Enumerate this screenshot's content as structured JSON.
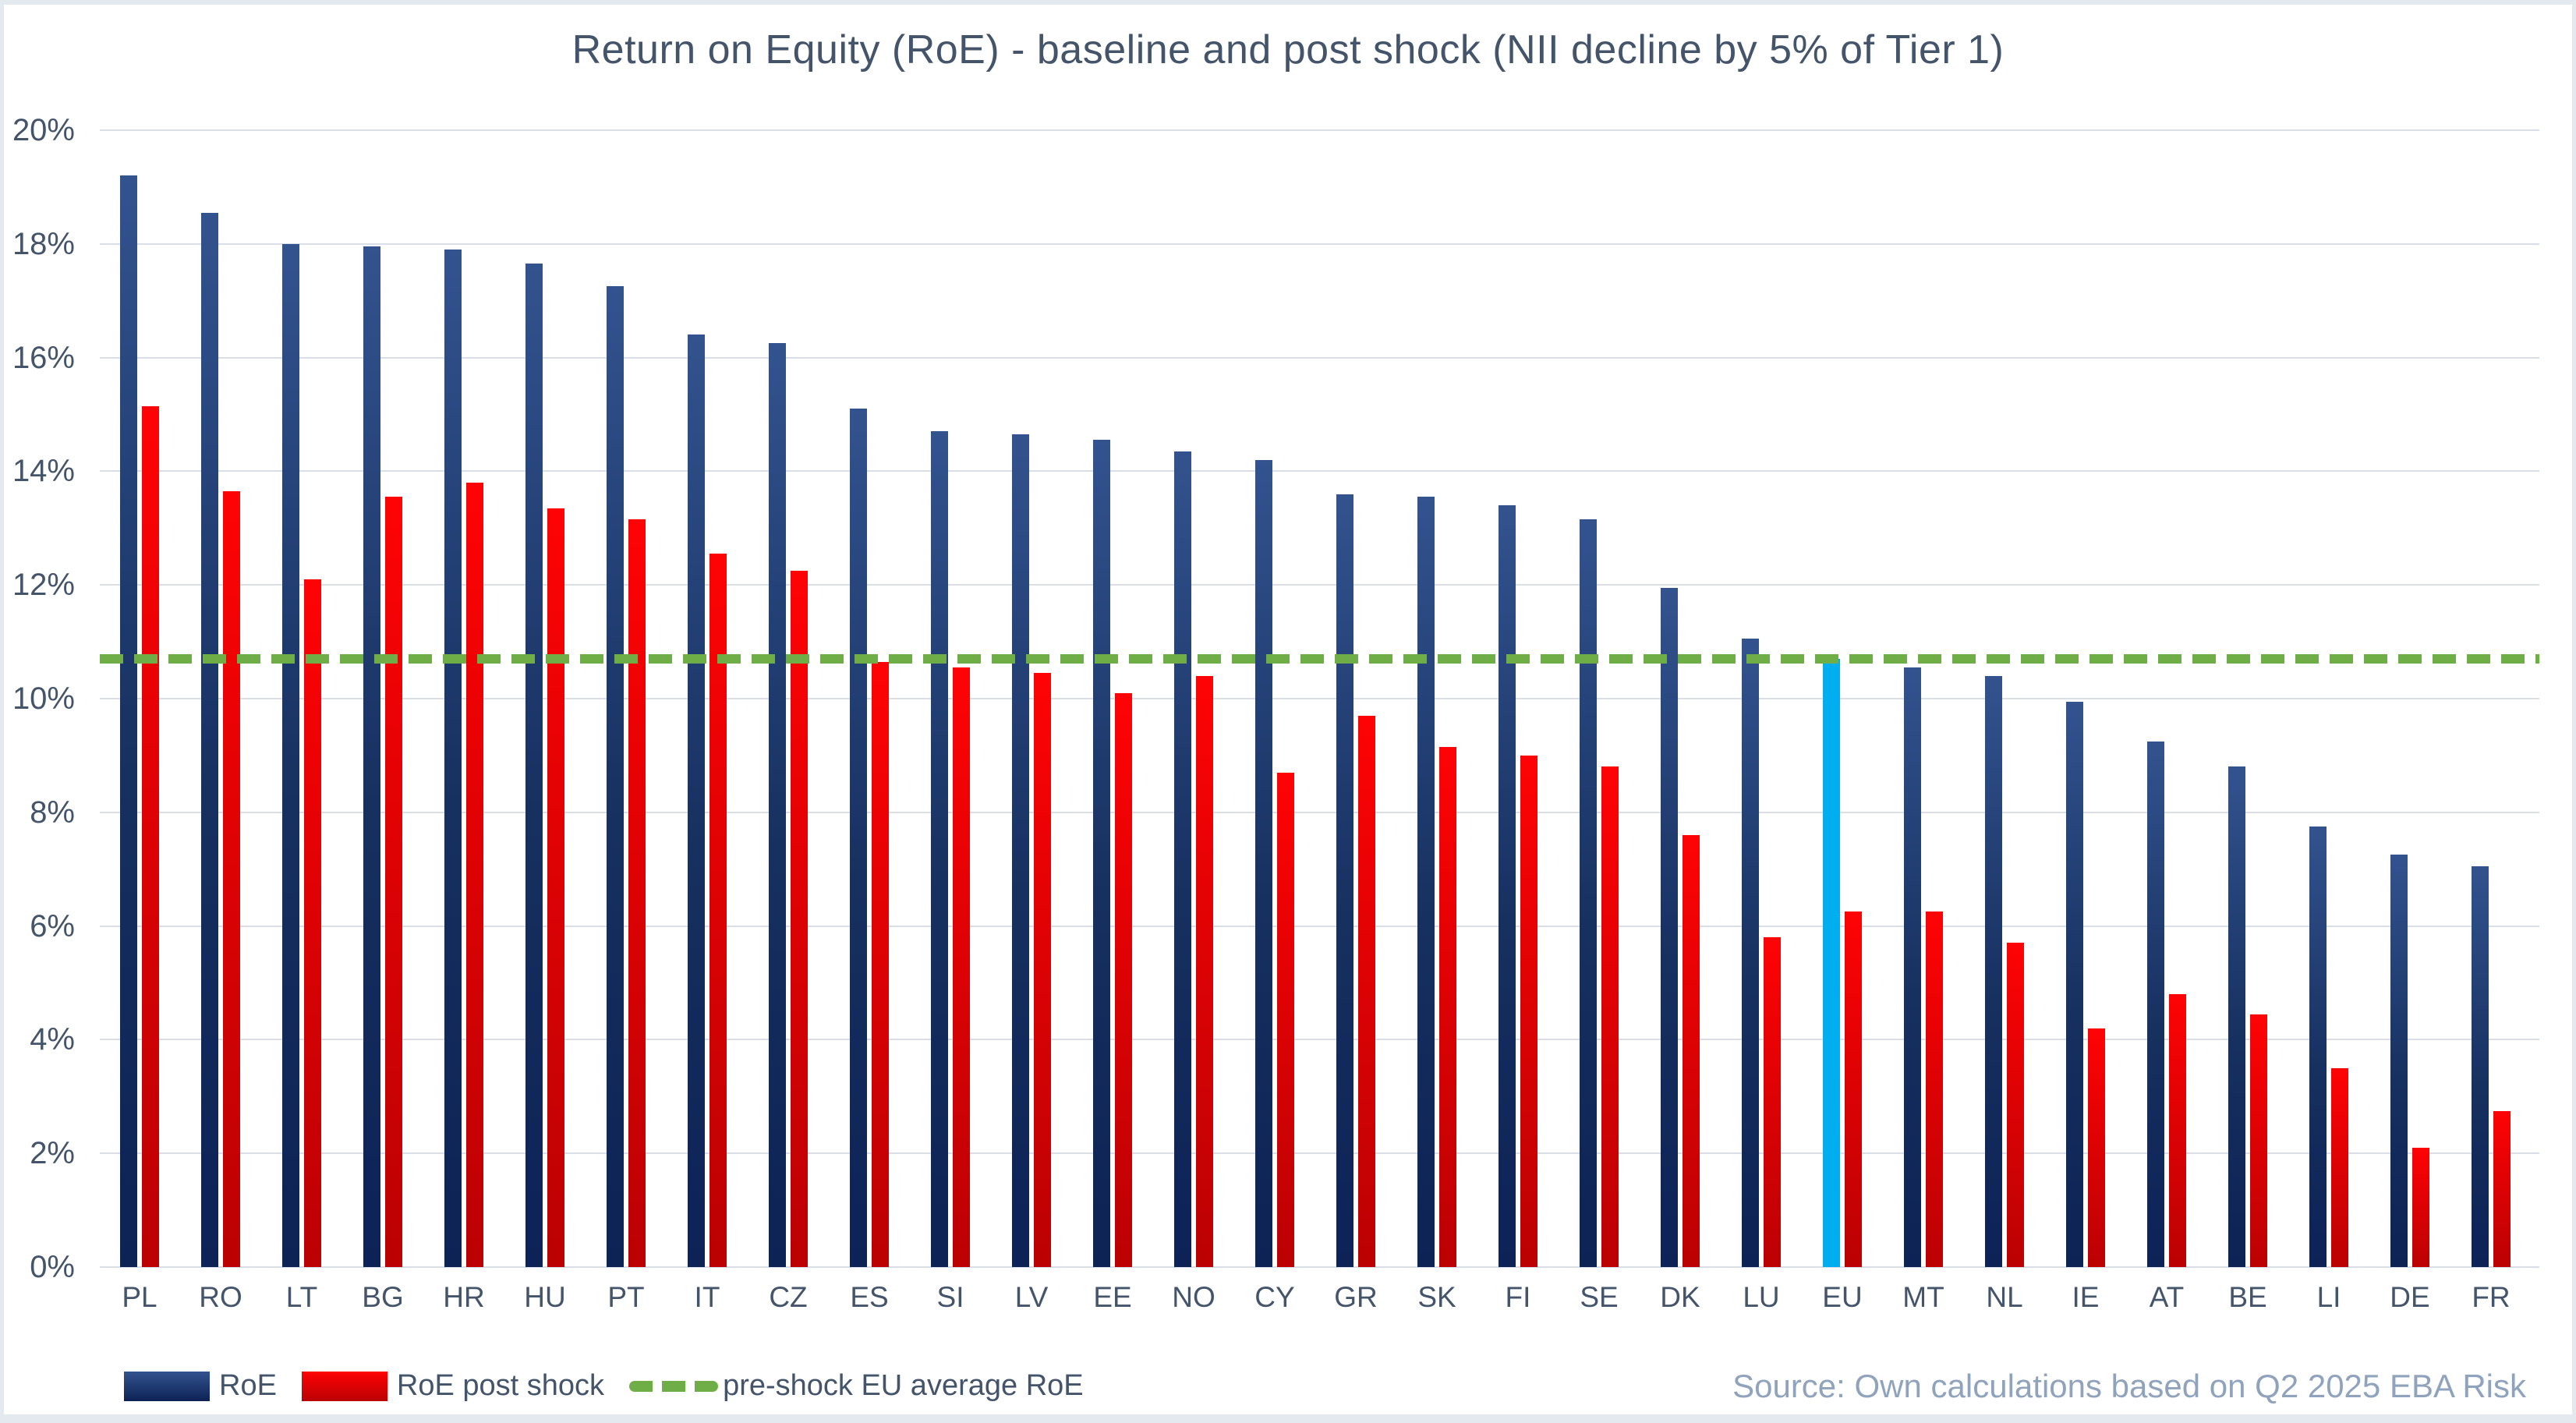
{
  "title": "Return on Equity (RoE) - baseline and post shock (NII decline by 5% of Tier 1)",
  "source": "Source: Own calculations based on Q2 2025 EBA Risk",
  "legend": {
    "items": [
      {
        "label": "RoE"
      },
      {
        "label": "RoE post shock"
      },
      {
        "label": "pre-shock EU average RoE"
      }
    ]
  },
  "y_axis": {
    "ticks": [
      "20%",
      "18%",
      "16%",
      "14%",
      "12%",
      "10%",
      "8%",
      "6%",
      "4%",
      "2%",
      "0%"
    ]
  },
  "chart_data": {
    "type": "bar",
    "title": "Return on Equity (RoE) - baseline and post shock (NII decline by 5% of Tier 1)",
    "categories": [
      "PL",
      "RO",
      "LT",
      "BG",
      "HR",
      "HU",
      "PT",
      "IT",
      "CZ",
      "ES",
      "SI",
      "LV",
      "EE",
      "NO",
      "CY",
      "GR",
      "SK",
      "FI",
      "SE",
      "DK",
      "LU",
      "EU",
      "MT",
      "NL",
      "IE",
      "AT",
      "BE",
      "LI",
      "DE",
      "FR"
    ],
    "series": [
      {
        "name": "RoE",
        "values": [
          19.2,
          18.55,
          18.0,
          17.95,
          17.9,
          17.65,
          17.25,
          16.4,
          16.25,
          15.1,
          14.7,
          14.65,
          14.55,
          14.35,
          14.2,
          13.6,
          13.55,
          13.4,
          13.15,
          11.95,
          11.05,
          10.7,
          10.55,
          10.4,
          9.95,
          9.25,
          8.8,
          7.75,
          7.25,
          7.05
        ]
      },
      {
        "name": "RoE post shock",
        "values": [
          15.15,
          13.65,
          12.1,
          13.55,
          13.8,
          13.35,
          13.15,
          12.55,
          12.25,
          10.65,
          10.55,
          10.45,
          10.1,
          10.4,
          8.7,
          9.7,
          9.15,
          9.0,
          8.8,
          7.6,
          5.8,
          6.25,
          6.25,
          5.7,
          4.2,
          4.8,
          4.45,
          3.5,
          2.1,
          2.75
        ]
      }
    ],
    "reference_line": {
      "label": "pre-shock EU average RoE",
      "value": 10.7
    },
    "highlight": {
      "category": "EU",
      "series": "RoE",
      "color": "#00AEEF"
    },
    "ylim": [
      0,
      20
    ],
    "ytick_step": 2,
    "ytick_format": "percent",
    "grid": true,
    "legend_position": "bottom-left"
  },
  "colors": {
    "bar_roe_top": "#33538F",
    "bar_roe_bottom": "#0D2255",
    "bar_shock_top": "#FE0305",
    "bar_shock_bottom": "#BB0103",
    "highlight_bar": "#00AEEF",
    "reference_line": "#6FAD47",
    "gridline": "#D9DEE7",
    "title_text": "#44546A",
    "axis_text": "#44546A",
    "source_text": "#90A3BC",
    "frame_edge": "#E4E9F0"
  }
}
